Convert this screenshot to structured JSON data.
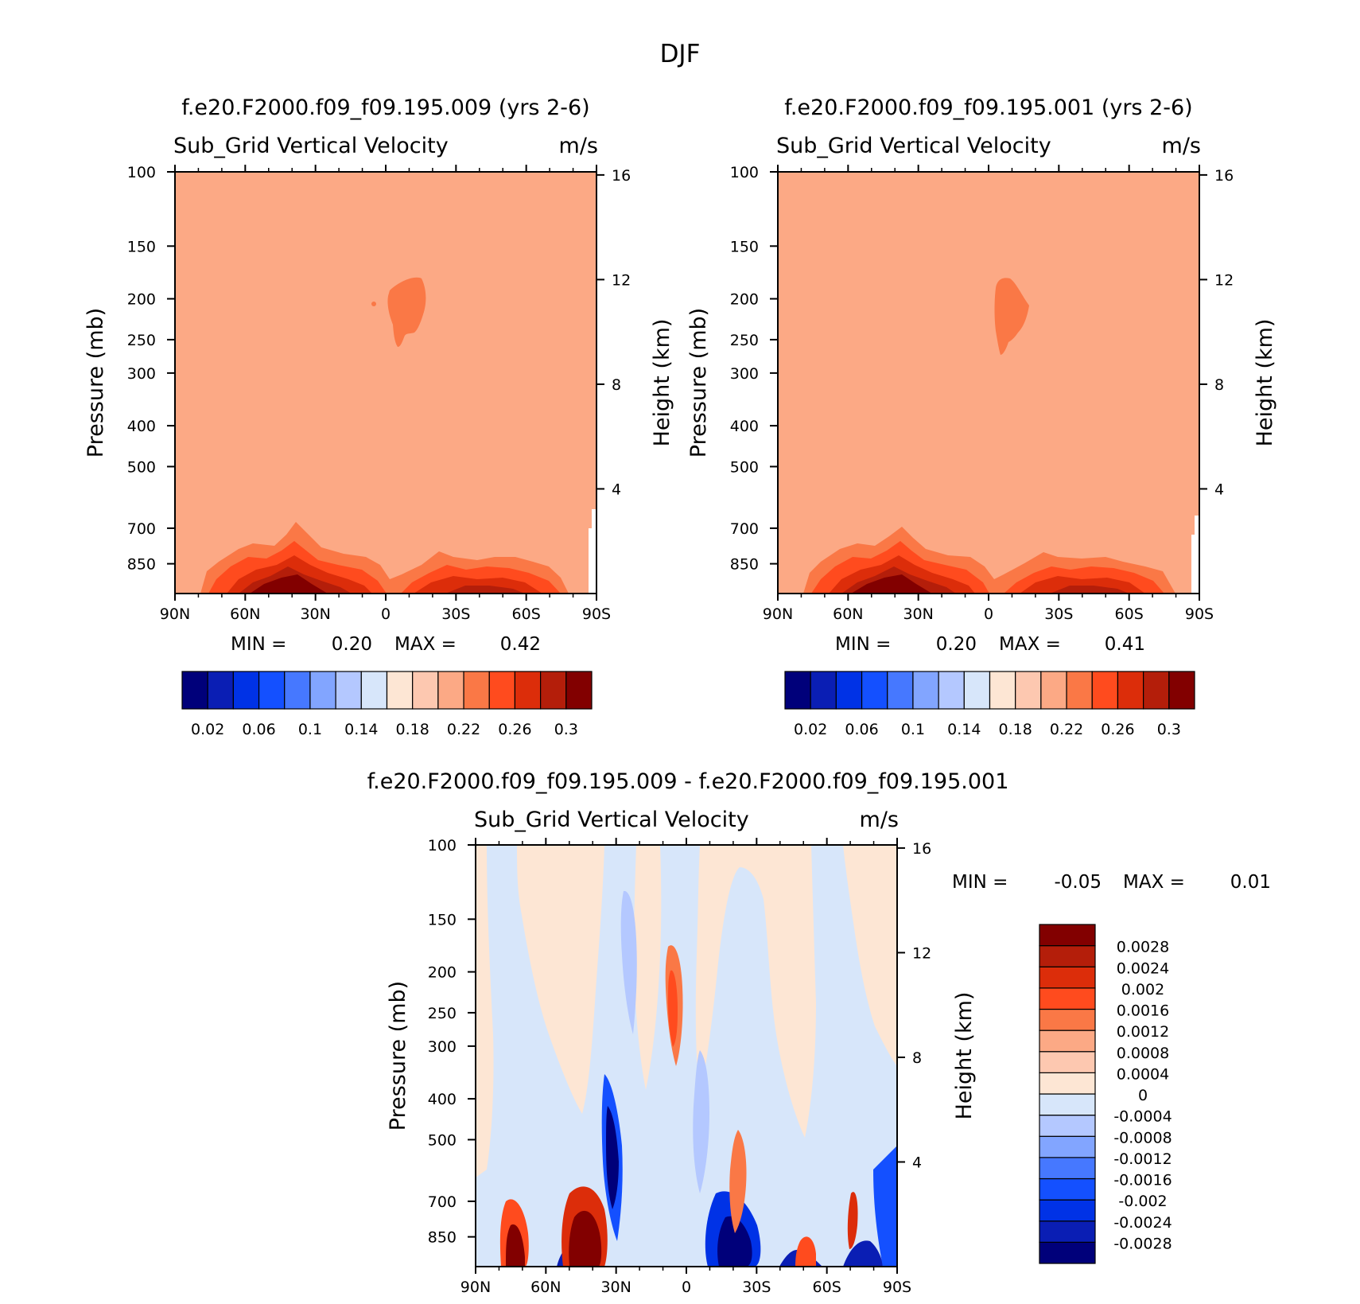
{
  "figure": {
    "title": "DJF"
  },
  "chart_data": [
    {
      "type": "contour",
      "title": "f.e20.F2000.f09_f09.195.009 (yrs 2-6)",
      "variable": "Sub_Grid Vertical Velocity",
      "units": "m/s",
      "xlabel": "",
      "ylabel": "Pressure (mb)",
      "y2label": "Height (km)",
      "xticks": [
        "90N",
        "60N",
        "30N",
        "0",
        "30S",
        "60S",
        "90S"
      ],
      "xvalues": [
        90,
        60,
        30,
        0,
        -30,
        -60,
        -90
      ],
      "yticks": [
        100,
        150,
        200,
        250,
        300,
        400,
        500,
        700,
        850
      ],
      "y2ticks": [
        16,
        12,
        8,
        4
      ],
      "ylim": [
        100,
        1000
      ],
      "y_scale": "log",
      "min_label": "MIN =",
      "min": "0.20",
      "max_label": "MAX =",
      "max": "0.42",
      "background_color": "#fca985",
      "colorbar": {
        "levels": [
          0.02,
          0.04,
          0.06,
          0.08,
          0.1,
          0.12,
          0.14,
          0.16,
          0.18,
          0.2,
          0.22,
          0.24,
          0.26,
          0.28,
          0.3
        ],
        "labels": [
          "0.02",
          "0.06",
          "0.1",
          "0.14",
          "0.18",
          "0.22",
          "0.26",
          "0.3"
        ],
        "colors": [
          "#00007a",
          "#0a1eb4",
          "#0032e6",
          "#1450ff",
          "#4678ff",
          "#82a5ff",
          "#b4c8ff",
          "#d7e6fa",
          "#fde6d4",
          "#fdc8b0",
          "#fca985",
          "#fa7846",
          "#ff4b1e",
          "#dc2d0a",
          "#b41e0a",
          "#820000"
        ]
      }
    },
    {
      "type": "contour",
      "title": "f.e20.F2000.f09_f09.195.001 (yrs 2-6)",
      "variable": "Sub_Grid Vertical Velocity",
      "units": "m/s",
      "xlabel": "",
      "ylabel": "Pressure (mb)",
      "y2label": "Height (km)",
      "xticks": [
        "90N",
        "60N",
        "30N",
        "0",
        "30S",
        "60S",
        "90S"
      ],
      "xvalues": [
        90,
        60,
        30,
        0,
        -30,
        -60,
        -90
      ],
      "yticks": [
        100,
        150,
        200,
        250,
        300,
        400,
        500,
        700,
        850
      ],
      "y2ticks": [
        16,
        12,
        8,
        4
      ],
      "ylim": [
        100,
        1000
      ],
      "y_scale": "log",
      "min_label": "MIN =",
      "min": "0.20",
      "max_label": "MAX =",
      "max": "0.41",
      "background_color": "#fca985",
      "colorbar": {
        "levels": [
          0.02,
          0.04,
          0.06,
          0.08,
          0.1,
          0.12,
          0.14,
          0.16,
          0.18,
          0.2,
          0.22,
          0.24,
          0.26,
          0.28,
          0.3
        ],
        "labels": [
          "0.02",
          "0.06",
          "0.1",
          "0.14",
          "0.18",
          "0.22",
          "0.26",
          "0.3"
        ],
        "colors": [
          "#00007a",
          "#0a1eb4",
          "#0032e6",
          "#1450ff",
          "#4678ff",
          "#82a5ff",
          "#b4c8ff",
          "#d7e6fa",
          "#fde6d4",
          "#fdc8b0",
          "#fca985",
          "#fa7846",
          "#ff4b1e",
          "#dc2d0a",
          "#b41e0a",
          "#820000"
        ]
      }
    },
    {
      "type": "contour",
      "title": "f.e20.F2000.f09_f09.195.009 - f.e20.F2000.f09_f09.195.001",
      "variable": "Sub_Grid Vertical Velocity",
      "units": "m/s",
      "xlabel": "",
      "ylabel": "Pressure (mb)",
      "y2label": "Height (km)",
      "xticks": [
        "90N",
        "60N",
        "30N",
        "0",
        "30S",
        "60S",
        "90S"
      ],
      "xvalues": [
        90,
        60,
        30,
        0,
        -30,
        -60,
        -90
      ],
      "yticks": [
        100,
        150,
        200,
        250,
        300,
        400,
        500,
        700,
        850
      ],
      "y2ticks": [
        16,
        12,
        8,
        4
      ],
      "ylim": [
        100,
        1000
      ],
      "y_scale": "log",
      "min_label": "MIN =",
      "min": "-0.05",
      "max_label": "MAX =",
      "max": "0.01",
      "colorbar": {
        "levels": [
          -0.0028,
          -0.0024,
          -0.002,
          -0.0016,
          -0.0012,
          -0.0008,
          -0.0004,
          0,
          0.0004,
          0.0008,
          0.0012,
          0.0016,
          0.002,
          0.0024,
          0.0028
        ],
        "labels": [
          "0.0028",
          "0.0024",
          "0.002",
          "0.0016",
          "0.0012",
          "0.0008",
          "0.0004",
          "0",
          "-0.0004",
          "-0.0008",
          "-0.0012",
          "-0.0016",
          "-0.002",
          "-0.0024",
          "-0.0028"
        ],
        "colors": [
          "#00007a",
          "#0a1eb4",
          "#0032e6",
          "#1450ff",
          "#4678ff",
          "#82a5ff",
          "#b4c8ff",
          "#d7e6fa",
          "#fde6d4",
          "#fdc8b0",
          "#fca985",
          "#fa7846",
          "#ff4b1e",
          "#dc2d0a",
          "#b41e0a",
          "#820000"
        ]
      }
    }
  ]
}
